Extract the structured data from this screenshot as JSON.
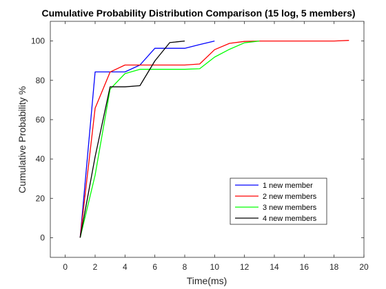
{
  "chart_data": {
    "type": "line",
    "title": "Cumulative Probability Distribution Comparison (15 log, 5 members)",
    "xlabel": "Time(ms)",
    "ylabel": "Cumulative Probability %",
    "xlim": [
      -1,
      20
    ],
    "ylim": [
      -10,
      110
    ],
    "xticks": [
      0,
      2,
      4,
      6,
      8,
      10,
      12,
      14,
      16,
      18,
      20
    ],
    "yticks": [
      0,
      20,
      40,
      60,
      80,
      100
    ],
    "grid": false,
    "legend_position": "lower-right",
    "series": [
      {
        "name": "1 new member",
        "color": "#0000ff",
        "x": [
          1,
          2,
          3,
          4,
          5,
          6,
          7,
          8,
          9,
          10
        ],
        "y": [
          0,
          84.3,
          84.3,
          84.3,
          87.8,
          96.3,
          96.3,
          96.3,
          98.2,
          100
        ]
      },
      {
        "name": "2 new members",
        "color": "#ff0000",
        "x": [
          1,
          2,
          3,
          4,
          5,
          6,
          7,
          8,
          9,
          10,
          11,
          12,
          13,
          14,
          15,
          16,
          17,
          18,
          19
        ],
        "y": [
          0,
          65.8,
          84.2,
          87.8,
          87.8,
          87.8,
          87.8,
          87.8,
          88.3,
          95.6,
          98.8,
          99.8,
          100,
          100,
          100,
          100,
          100,
          100,
          100.3
        ]
      },
      {
        "name": "3 new members",
        "color": "#00ff00",
        "x": [
          1,
          2,
          3,
          4,
          5,
          6,
          7,
          8,
          9,
          10,
          11,
          12,
          13
        ],
        "y": [
          0,
          31.8,
          75.5,
          83.4,
          85.6,
          85.6,
          85.6,
          85.6,
          85.9,
          91.8,
          95.8,
          99.1,
          100
        ]
      },
      {
        "name": "4  new members",
        "color": "#000000",
        "x": [
          1,
          2,
          3,
          4,
          5,
          6,
          7,
          8
        ],
        "y": [
          0,
          41.2,
          76.7,
          76.7,
          77.3,
          89.9,
          99.2,
          100
        ]
      }
    ]
  }
}
